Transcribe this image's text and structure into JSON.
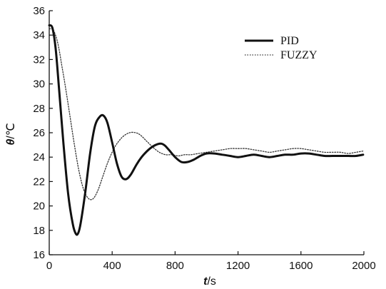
{
  "chart_data": {
    "type": "line",
    "title": "",
    "xlabel": {
      "var": "t",
      "unit": "/s"
    },
    "ylabel": {
      "var": "θ",
      "unit": "/℃"
    },
    "xlim": [
      0,
      2000
    ],
    "ylim": [
      16,
      36
    ],
    "xticks": [
      0,
      400,
      800,
      1200,
      1600,
      2000
    ],
    "yticks": [
      16,
      18,
      20,
      22,
      24,
      26,
      28,
      30,
      32,
      34,
      36
    ],
    "grid": false,
    "legend_position": "top-right",
    "series": [
      {
        "name": "PID",
        "style": "solid-thick",
        "color": "#111111",
        "x": [
          0,
          20,
          40,
          60,
          90,
          120,
          150,
          170,
          185,
          200,
          230,
          260,
          290,
          320,
          345,
          370,
          400,
          430,
          460,
          490,
          520,
          560,
          600,
          650,
          700,
          730,
          760,
          800,
          840,
          880,
          920,
          960,
          1000,
          1050,
          1100,
          1150,
          1200,
          1250,
          1300,
          1350,
          1400,
          1450,
          1500,
          1550,
          1600,
          1650,
          1700,
          1750,
          1800,
          1850,
          1900,
          1950,
          1995
        ],
        "values": [
          34.8,
          34.6,
          33.0,
          30.0,
          25.2,
          21.0,
          18.5,
          17.7,
          17.8,
          18.6,
          21.2,
          24.3,
          26.5,
          27.3,
          27.4,
          26.8,
          25.2,
          23.5,
          22.4,
          22.2,
          22.6,
          23.5,
          24.2,
          24.8,
          25.1,
          25.0,
          24.6,
          24.0,
          23.6,
          23.6,
          23.8,
          24.1,
          24.3,
          24.3,
          24.2,
          24.1,
          24.0,
          24.1,
          24.2,
          24.1,
          24.0,
          24.1,
          24.2,
          24.2,
          24.3,
          24.3,
          24.2,
          24.1,
          24.1,
          24.1,
          24.1,
          24.1,
          24.2
        ]
      },
      {
        "name": "FUZZY",
        "style": "dotted",
        "color": "#333333",
        "x": [
          0,
          20,
          40,
          60,
          80,
          100,
          130,
          160,
          190,
          220,
          250,
          280,
          310,
          340,
          370,
          400,
          430,
          470,
          510,
          550,
          580,
          620,
          660,
          700,
          740,
          780,
          820,
          860,
          900,
          950,
          1000,
          1050,
          1100,
          1150,
          1200,
          1250,
          1300,
          1350,
          1400,
          1450,
          1500,
          1550,
          1600,
          1650,
          1700,
          1750,
          1800,
          1850,
          1900,
          1950,
          1995
        ],
        "values": [
          34.5,
          34.5,
          34.0,
          33.0,
          31.5,
          30.0,
          27.5,
          25.0,
          22.8,
          21.3,
          20.6,
          20.6,
          21.3,
          22.4,
          23.5,
          24.4,
          25.1,
          25.7,
          26.0,
          26.0,
          25.8,
          25.3,
          24.8,
          24.4,
          24.2,
          24.2,
          24.1,
          24.2,
          24.2,
          24.3,
          24.4,
          24.5,
          24.6,
          24.7,
          24.7,
          24.7,
          24.6,
          24.5,
          24.4,
          24.5,
          24.6,
          24.7,
          24.7,
          24.6,
          24.5,
          24.4,
          24.4,
          24.4,
          24.3,
          24.4,
          24.5
        ]
      }
    ]
  }
}
